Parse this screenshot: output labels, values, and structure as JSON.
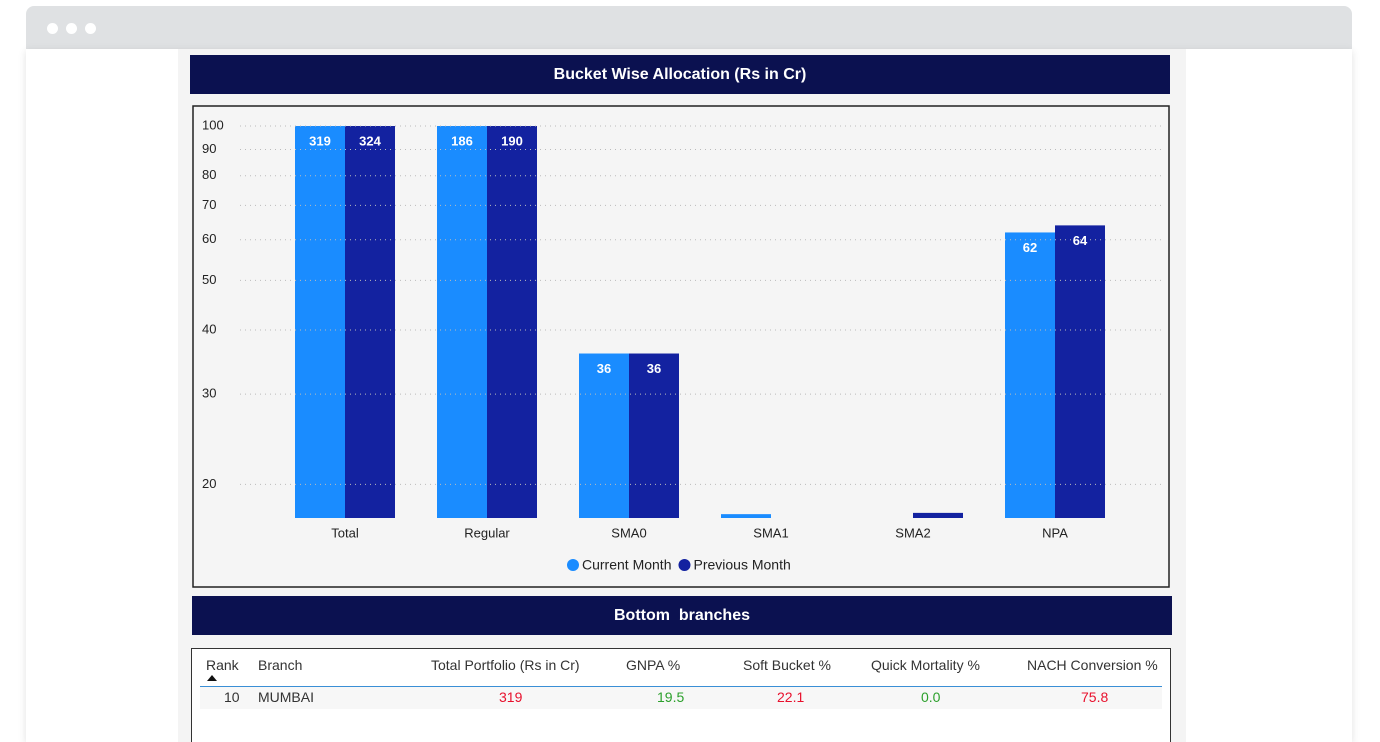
{
  "chart_data": {
    "type": "bar",
    "title": "Bucket Wise Allocation (Rs in Cr)",
    "categories": [
      "Total",
      "Regular",
      "SMA0",
      "SMA1",
      "SMA2",
      "NPA"
    ],
    "series": [
      {
        "name": "Current Month",
        "color": "#1a8cff",
        "values": [
          319,
          186,
          36,
          17.5,
          17.1,
          62
        ],
        "value_labels": [
          "319",
          "186",
          "36",
          null,
          null,
          "62"
        ]
      },
      {
        "name": "Previous Month",
        "color": "#1322a0",
        "values": [
          324,
          190,
          36,
          null,
          17.6,
          64
        ],
        "value_labels": [
          "324",
          "190",
          "36",
          null,
          null,
          "64"
        ]
      }
    ],
    "log_scale": true,
    "ylim": [
      17.2,
      100
    ],
    "yticks": [
      20,
      30,
      40,
      50,
      60,
      70,
      80,
      90,
      100
    ],
    "grid": true,
    "legend": "bottom"
  },
  "table": {
    "title": "Bottom  branches",
    "columns": [
      "Rank",
      "Branch",
      "Total Portfolio (Rs in Cr)",
      "GNPA %",
      "Soft Bucket %",
      "Quick Mortality %",
      "NACH Conversion %"
    ],
    "rows": [
      [
        "10",
        "MUMBAI",
        "319",
        "19.5",
        "22.1",
        "0.0",
        "75.8"
      ]
    ],
    "cell_colors": [
      null,
      null,
      "#e8112d",
      "#2ca02c",
      "#e8112d",
      "#2ca02c",
      "#e8112d"
    ]
  }
}
